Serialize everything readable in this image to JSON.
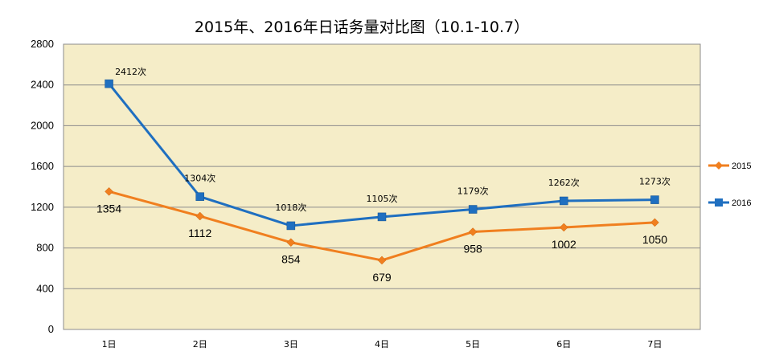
{
  "chart_data": {
    "type": "line",
    "title": "2015年、2016年日话务量对比图（10.1-10.7）",
    "categories": [
      "1日",
      "2日",
      "3日",
      "4日",
      "5日",
      "6日",
      "7日"
    ],
    "ylim": [
      0,
      2800
    ],
    "yticks": [
      0,
      400,
      800,
      1200,
      1600,
      2000,
      2400,
      2800
    ],
    "grid": true,
    "legend_position": "right",
    "plot_background": "#f5edc8",
    "series": [
      {
        "name": "2015",
        "color": "#f07f1f",
        "marker": "diamond",
        "values": [
          1354,
          1112,
          854,
          679,
          958,
          1002,
          1050
        ],
        "labels": [
          "1354",
          "1112",
          "854",
          "679",
          "958",
          "1002",
          "1050"
        ]
      },
      {
        "name": "2016",
        "color": "#1f6fc0",
        "marker": "square",
        "values": [
          2412,
          1304,
          1018,
          1105,
          1179,
          1262,
          1273
        ],
        "labels": [
          "2412次",
          "1304次",
          "1018次",
          "1105次",
          "1179次",
          "1262次",
          "1273次"
        ]
      }
    ]
  }
}
